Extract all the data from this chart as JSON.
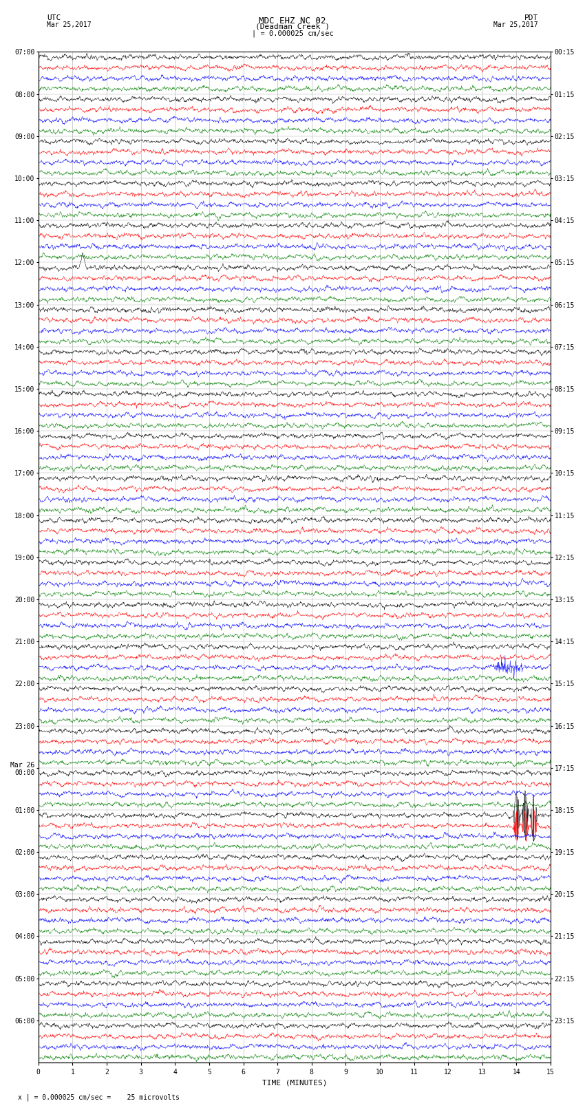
{
  "title_line1": "MDC EHZ NC 02",
  "title_line2": "(Deadman Creek )",
  "title_line3": "| = 0.000025 cm/sec",
  "left_label_top": "UTC",
  "left_label_date": "Mar 25,2017",
  "right_label_top": "PDT",
  "right_label_date": "Mar 25,2017",
  "xlabel": "TIME (MINUTES)",
  "bottom_note": "x | = 0.000025 cm/sec =    25 microvolts",
  "bg_color": "#ffffff",
  "trace_colors": [
    "black",
    "red",
    "blue",
    "green"
  ],
  "utc_hour_labels": [
    "07:00",
    "08:00",
    "09:00",
    "10:00",
    "11:00",
    "12:00",
    "13:00",
    "14:00",
    "15:00",
    "16:00",
    "17:00",
    "18:00",
    "19:00",
    "20:00",
    "21:00",
    "22:00",
    "23:00",
    "Mar 26\n00:00",
    "01:00",
    "02:00",
    "03:00",
    "04:00",
    "05:00",
    "06:00"
  ],
  "pdt_hour_labels": [
    "00:15",
    "01:15",
    "02:15",
    "03:15",
    "04:15",
    "05:15",
    "06:15",
    "07:15",
    "08:15",
    "09:15",
    "10:15",
    "11:15",
    "12:15",
    "13:15",
    "14:15",
    "15:15",
    "16:15",
    "17:15",
    "18:15",
    "19:15",
    "20:15",
    "21:15",
    "22:15",
    "23:15"
  ],
  "n_hours": 24,
  "traces_per_hour": 4,
  "xmin": 0,
  "xmax": 15,
  "xticks": [
    0,
    1,
    2,
    3,
    4,
    5,
    6,
    7,
    8,
    9,
    10,
    11,
    12,
    13,
    14,
    15
  ],
  "noise_amp": 0.28,
  "grid_color": "#aaaaaa",
  "label_fontsize": 7,
  "title_fontsize": 9,
  "trace_lw": 0.35
}
